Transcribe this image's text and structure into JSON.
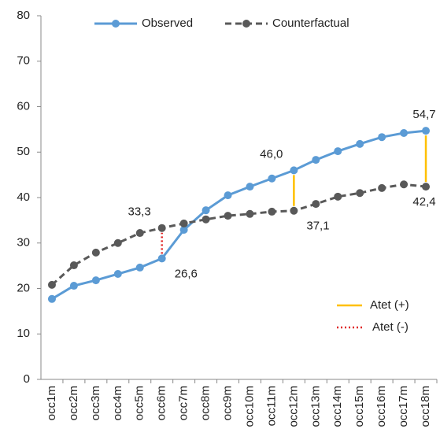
{
  "chart_data": {
    "type": "line",
    "categories": [
      "occ1m",
      "occ2m",
      "occ3m",
      "occ4m",
      "occ5m",
      "occ6m",
      "occ7m",
      "occ8m",
      "occ9m",
      "occ10m",
      "occ11m",
      "occ12m",
      "occ13m",
      "occ14m",
      "occ15m",
      "occ16m",
      "occ17m",
      "occ18m"
    ],
    "series": [
      {
        "name": "Observed",
        "color": "#5b9bd5",
        "dash": false,
        "values": [
          17.7,
          20.6,
          21.8,
          23.2,
          24.6,
          26.6,
          32.9,
          37.2,
          40.5,
          42.4,
          44.2,
          46.0,
          48.3,
          50.2,
          51.8,
          53.3,
          54.2,
          54.7
        ],
        "value_labels": [
          null,
          null,
          null,
          null,
          null,
          "26,6",
          null,
          null,
          null,
          null,
          null,
          "46,0",
          null,
          null,
          null,
          null,
          null,
          "54,7"
        ]
      },
      {
        "name": "Counterfactual",
        "color": "#595959",
        "dash": true,
        "values": [
          20.8,
          25.1,
          27.9,
          30.0,
          32.2,
          33.3,
          34.3,
          35.2,
          36.0,
          36.4,
          36.9,
          37.1,
          38.6,
          40.2,
          41.0,
          42.1,
          42.9,
          42.4
        ],
        "value_labels": [
          null,
          null,
          null,
          null,
          null,
          "33,3",
          null,
          null,
          null,
          null,
          null,
          "37,1",
          null,
          null,
          null,
          null,
          null,
          "42,4"
        ]
      }
    ],
    "atet_legend": [
      {
        "name": "Atet (+)",
        "color": "#ffc000",
        "style": "solid"
      },
      {
        "name": "Atet (-)",
        "color": "#e02020",
        "style": "dotted"
      }
    ],
    "ylim": [
      0,
      80
    ],
    "yticks": [
      0,
      10,
      20,
      30,
      40,
      50,
      60,
      70,
      80
    ],
    "grid": false
  }
}
